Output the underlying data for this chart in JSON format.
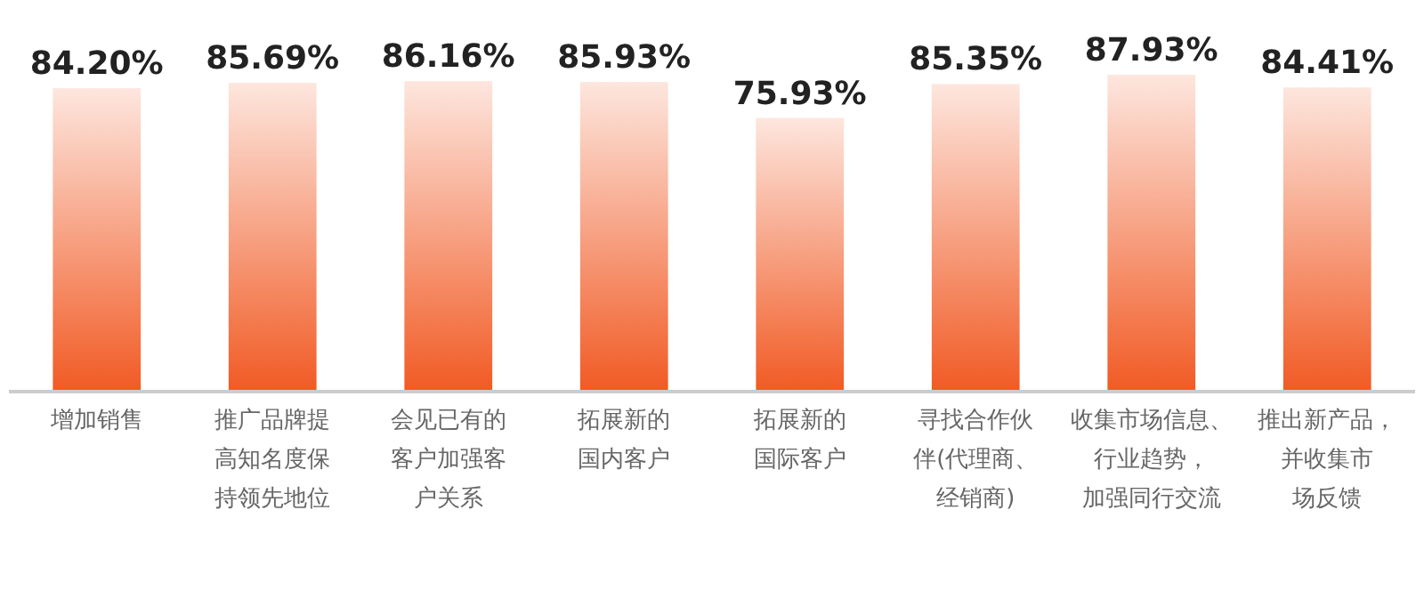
{
  "chart_data": {
    "type": "bar",
    "categories": [
      "增加销售",
      "推广品牌提高知名度保持领先地位",
      "会见已有的客户加强客户关系",
      "拓展新的国内客户",
      "拓展新的国际客户",
      "寻找合作伙伴(代理商、经销商)",
      "收集市场信息、行业趋势，加强同行交流",
      "推出新产品，并收集市场反馈"
    ],
    "values": [
      84.2,
      85.69,
      86.16,
      85.93,
      75.93,
      85.35,
      87.93,
      84.41
    ],
    "value_labels": [
      "84.20%",
      "85.69%",
      "86.16%",
      "85.93%",
      "75.93%",
      "85.35%",
      "87.93%",
      "84.41%"
    ],
    "color": "#f15a24"
  }
}
